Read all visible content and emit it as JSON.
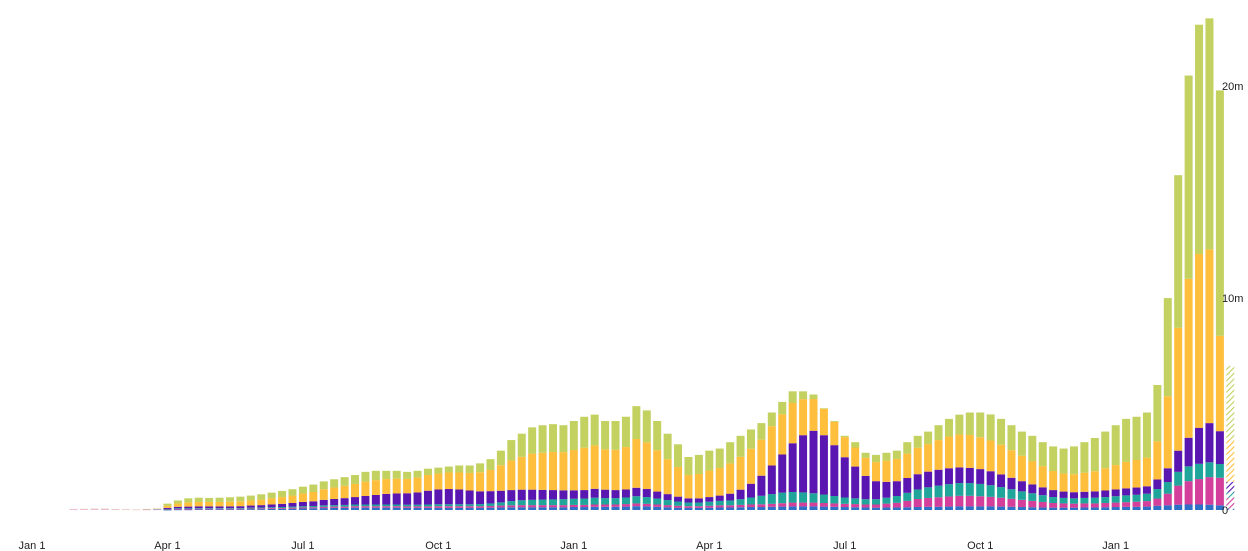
{
  "chart_data": {
    "type": "bar",
    "stacked": true,
    "title": "",
    "xlabel": "",
    "ylabel": "",
    "ylim": [
      0,
      23.5
    ],
    "y_unit": "million",
    "y_ticks": [
      {
        "value": 0,
        "label": "0"
      },
      {
        "value": 10,
        "label": "10m"
      },
      {
        "value": 20,
        "label": "20m"
      }
    ],
    "x_ticks": [
      {
        "week": 0,
        "label": "Jan 1"
      },
      {
        "week": 13,
        "label": "Apr 1"
      },
      {
        "week": 26,
        "label": "Jul 1"
      },
      {
        "week": 39,
        "label": "Oct 1"
      },
      {
        "week": 52,
        "label": "Jan 1"
      },
      {
        "week": 65,
        "label": "Apr 1"
      },
      {
        "week": 78,
        "label": "Jul 1"
      },
      {
        "week": 91,
        "label": "Oct 1"
      },
      {
        "week": 104,
        "label": "Jan 1"
      }
    ],
    "grid": false,
    "legend": "none",
    "first_week": 4,
    "last_week_partial": true,
    "series_colors": [
      "#2f6fc6",
      "#d33f9a",
      "#20a59a",
      "#5a16b0",
      "#ffbf3c",
      "#c2d160"
    ],
    "totals": [
      0.05,
      0.06,
      0.07,
      0.07,
      0.05,
      0.04,
      0.03,
      0.05,
      0.1,
      0.3,
      0.45,
      0.55,
      0.58,
      0.57,
      0.58,
      0.6,
      0.63,
      0.68,
      0.74,
      0.82,
      0.9,
      0.98,
      1.1,
      1.2,
      1.35,
      1.45,
      1.55,
      1.65,
      1.8,
      1.85,
      1.85,
      1.85,
      1.8,
      1.85,
      1.95,
      2.0,
      2.05,
      2.1,
      2.1,
      2.2,
      2.4,
      2.8,
      3.3,
      3.6,
      3.9,
      4.0,
      4.05,
      4.0,
      4.2,
      4.4,
      4.5,
      4.2,
      4.2,
      4.4,
      4.9,
      4.7,
      4.2,
      3.6,
      3.1,
      2.5,
      2.6,
      2.8,
      2.9,
      3.2,
      3.5,
      3.8,
      4.1,
      4.6,
      5.1,
      5.6,
      5.6,
      5.4,
      4.8,
      4.2,
      3.5,
      3.2,
      2.7,
      2.6,
      2.7,
      2.8,
      3.2,
      3.5,
      3.7,
      4.0,
      4.3,
      4.5,
      4.6,
      4.6,
      4.5,
      4.3,
      4.0,
      3.7,
      3.5,
      3.2,
      3.0,
      2.9,
      3.0,
      3.2,
      3.4,
      3.7,
      4.0,
      4.3,
      4.4,
      4.6,
      5.9,
      10.0,
      15.8,
      20.5,
      22.9,
      23.2,
      19.8,
      6.8
    ],
    "series_share_note": "",
    "series_values": {
      "blue": [
        0.0,
        0.0,
        0.0,
        0.0,
        0.0,
        0.0,
        0.0,
        0.0,
        0.0,
        0.01,
        0.02,
        0.02,
        0.03,
        0.03,
        0.03,
        0.03,
        0.03,
        0.04,
        0.04,
        0.05,
        0.05,
        0.06,
        0.07,
        0.08,
        0.09,
        0.1,
        0.1,
        0.11,
        0.11,
        0.11,
        0.11,
        0.11,
        0.1,
        0.1,
        0.1,
        0.1,
        0.1,
        0.1,
        0.1,
        0.1,
        0.11,
        0.12,
        0.13,
        0.13,
        0.13,
        0.13,
        0.13,
        0.13,
        0.14,
        0.14,
        0.15,
        0.15,
        0.15,
        0.16,
        0.18,
        0.17,
        0.15,
        0.13,
        0.11,
        0.1,
        0.1,
        0.11,
        0.12,
        0.12,
        0.13,
        0.14,
        0.14,
        0.15,
        0.16,
        0.17,
        0.17,
        0.17,
        0.16,
        0.15,
        0.14,
        0.13,
        0.12,
        0.11,
        0.12,
        0.12,
        0.13,
        0.14,
        0.15,
        0.15,
        0.16,
        0.17,
        0.17,
        0.17,
        0.17,
        0.16,
        0.15,
        0.14,
        0.13,
        0.12,
        0.11,
        0.11,
        0.11,
        0.12,
        0.12,
        0.13,
        0.14,
        0.15,
        0.15,
        0.16,
        0.2,
        0.22,
        0.25,
        0.26,
        0.26,
        0.25,
        0.22,
        0.08
      ],
      "magenta": [
        0.05,
        0.05,
        0.06,
        0.06,
        0.04,
        0.03,
        0.02,
        0.02,
        0.02,
        0.02,
        0.03,
        0.03,
        0.03,
        0.03,
        0.03,
        0.03,
        0.03,
        0.03,
        0.04,
        0.04,
        0.04,
        0.05,
        0.05,
        0.05,
        0.06,
        0.06,
        0.06,
        0.07,
        0.07,
        0.07,
        0.07,
        0.07,
        0.07,
        0.07,
        0.07,
        0.08,
        0.08,
        0.08,
        0.08,
        0.08,
        0.08,
        0.09,
        0.09,
        0.1,
        0.1,
        0.1,
        0.1,
        0.1,
        0.1,
        0.1,
        0.11,
        0.11,
        0.11,
        0.12,
        0.13,
        0.12,
        0.11,
        0.1,
        0.09,
        0.08,
        0.08,
        0.09,
        0.1,
        0.1,
        0.11,
        0.12,
        0.13,
        0.14,
        0.16,
        0.18,
        0.18,
        0.18,
        0.17,
        0.16,
        0.15,
        0.15,
        0.14,
        0.15,
        0.18,
        0.22,
        0.3,
        0.38,
        0.42,
        0.45,
        0.48,
        0.5,
        0.5,
        0.48,
        0.45,
        0.42,
        0.38,
        0.34,
        0.3,
        0.26,
        0.22,
        0.2,
        0.19,
        0.19,
        0.19,
        0.2,
        0.21,
        0.22,
        0.24,
        0.26,
        0.34,
        0.55,
        0.9,
        1.1,
        1.2,
        1.3,
        1.3,
        0.5
      ],
      "teal": [
        0.0,
        0.0,
        0.0,
        0.0,
        0.0,
        0.0,
        0.0,
        0.0,
        0.01,
        0.02,
        0.03,
        0.03,
        0.03,
        0.03,
        0.03,
        0.03,
        0.03,
        0.04,
        0.04,
        0.04,
        0.05,
        0.05,
        0.06,
        0.06,
        0.07,
        0.07,
        0.08,
        0.08,
        0.08,
        0.08,
        0.08,
        0.08,
        0.08,
        0.08,
        0.09,
        0.09,
        0.09,
        0.09,
        0.09,
        0.1,
        0.12,
        0.15,
        0.2,
        0.23,
        0.25,
        0.26,
        0.27,
        0.28,
        0.29,
        0.3,
        0.32,
        0.3,
        0.3,
        0.31,
        0.34,
        0.32,
        0.28,
        0.24,
        0.2,
        0.17,
        0.17,
        0.19,
        0.21,
        0.23,
        0.27,
        0.33,
        0.4,
        0.46,
        0.5,
        0.5,
        0.48,
        0.44,
        0.4,
        0.35,
        0.3,
        0.27,
        0.25,
        0.25,
        0.28,
        0.32,
        0.38,
        0.45,
        0.5,
        0.55,
        0.58,
        0.6,
        0.6,
        0.58,
        0.55,
        0.5,
        0.45,
        0.4,
        0.36,
        0.32,
        0.28,
        0.26,
        0.25,
        0.26,
        0.27,
        0.28,
        0.3,
        0.32,
        0.33,
        0.35,
        0.45,
        0.55,
        0.65,
        0.7,
        0.72,
        0.7,
        0.65,
        0.25
      ],
      "purple": [
        0.0,
        0.0,
        0.0,
        0.0,
        0.0,
        0.0,
        0.0,
        0.01,
        0.02,
        0.05,
        0.07,
        0.08,
        0.08,
        0.08,
        0.08,
        0.08,
        0.09,
        0.1,
        0.11,
        0.13,
        0.15,
        0.17,
        0.2,
        0.22,
        0.26,
        0.29,
        0.32,
        0.35,
        0.4,
        0.45,
        0.5,
        0.52,
        0.54,
        0.58,
        0.65,
        0.7,
        0.72,
        0.7,
        0.65,
        0.6,
        0.58,
        0.55,
        0.52,
        0.5,
        0.48,
        0.46,
        0.44,
        0.42,
        0.4,
        0.4,
        0.42,
        0.4,
        0.38,
        0.38,
        0.4,
        0.38,
        0.33,
        0.28,
        0.23,
        0.2,
        0.2,
        0.22,
        0.25,
        0.32,
        0.45,
        0.65,
        0.95,
        1.35,
        1.8,
        2.3,
        2.7,
        2.95,
        2.8,
        2.4,
        1.9,
        1.5,
        1.1,
        0.85,
        0.75,
        0.7,
        0.7,
        0.72,
        0.74,
        0.75,
        0.75,
        0.74,
        0.72,
        0.7,
        0.66,
        0.6,
        0.54,
        0.48,
        0.42,
        0.37,
        0.33,
        0.3,
        0.29,
        0.29,
        0.3,
        0.31,
        0.32,
        0.33,
        0.34,
        0.35,
        0.45,
        0.65,
        1.0,
        1.35,
        1.7,
        1.85,
        1.55,
        0.5
      ],
      "orange": [
        0.0,
        0.0,
        0.0,
        0.0,
        0.0,
        0.0,
        0.0,
        0.01,
        0.03,
        0.1,
        0.16,
        0.2,
        0.21,
        0.21,
        0.21,
        0.22,
        0.23,
        0.24,
        0.26,
        0.29,
        0.32,
        0.35,
        0.4,
        0.44,
        0.5,
        0.54,
        0.58,
        0.62,
        0.68,
        0.7,
        0.7,
        0.7,
        0.68,
        0.7,
        0.74,
        0.75,
        0.78,
        0.8,
        0.83,
        0.9,
        1.0,
        1.2,
        1.4,
        1.55,
        1.7,
        1.75,
        1.8,
        1.8,
        1.9,
        2.0,
        2.05,
        1.9,
        1.9,
        2.0,
        2.3,
        2.2,
        1.95,
        1.65,
        1.4,
        1.1,
        1.15,
        1.25,
        1.3,
        1.43,
        1.55,
        1.65,
        1.7,
        1.85,
        1.9,
        1.9,
        1.7,
        1.5,
        1.25,
        1.1,
        0.95,
        0.9,
        0.85,
        0.9,
        1.0,
        1.05,
        1.15,
        1.25,
        1.3,
        1.4,
        1.5,
        1.55,
        1.55,
        1.5,
        1.45,
        1.4,
        1.3,
        1.2,
        1.1,
        1.0,
        0.9,
        0.85,
        0.85,
        0.9,
        0.95,
        1.05,
        1.15,
        1.25,
        1.3,
        1.35,
        1.8,
        3.4,
        5.8,
        7.5,
        8.2,
        8.2,
        4.5,
        2.0
      ],
      "lime": [
        0.0,
        0.01,
        0.01,
        0.01,
        0.01,
        0.01,
        0.01,
        0.01,
        0.02,
        0.1,
        0.14,
        0.19,
        0.2,
        0.19,
        0.2,
        0.21,
        0.22,
        0.23,
        0.25,
        0.27,
        0.29,
        0.3,
        0.32,
        0.35,
        0.37,
        0.39,
        0.41,
        0.42,
        0.46,
        0.44,
        0.39,
        0.37,
        0.33,
        0.32,
        0.3,
        0.28,
        0.28,
        0.33,
        0.35,
        0.42,
        0.51,
        0.69,
        0.96,
        1.09,
        1.24,
        1.3,
        1.31,
        1.27,
        1.37,
        1.46,
        1.45,
        1.34,
        1.36,
        1.43,
        1.55,
        1.51,
        1.38,
        1.2,
        1.07,
        0.85,
        0.9,
        0.94,
        0.92,
        1.0,
        0.99,
        0.91,
        0.78,
        0.65,
        0.58,
        0.55,
        0.37,
        0.21,
        0.02,
        0.04,
        0.06,
        0.25,
        0.24,
        0.34,
        0.37,
        0.39,
        0.54,
        0.56,
        0.59,
        0.7,
        0.83,
        0.94,
        1.06,
        1.17,
        1.23,
        1.22,
        1.18,
        1.14,
        1.19,
        1.13,
        1.16,
        1.18,
        1.31,
        1.44,
        1.57,
        1.73,
        1.88,
        2.03,
        2.04,
        2.13,
        2.66,
        4.63,
        7.2,
        9.59,
        10.82,
        10.9,
        11.58,
        3.47
      ]
    }
  }
}
